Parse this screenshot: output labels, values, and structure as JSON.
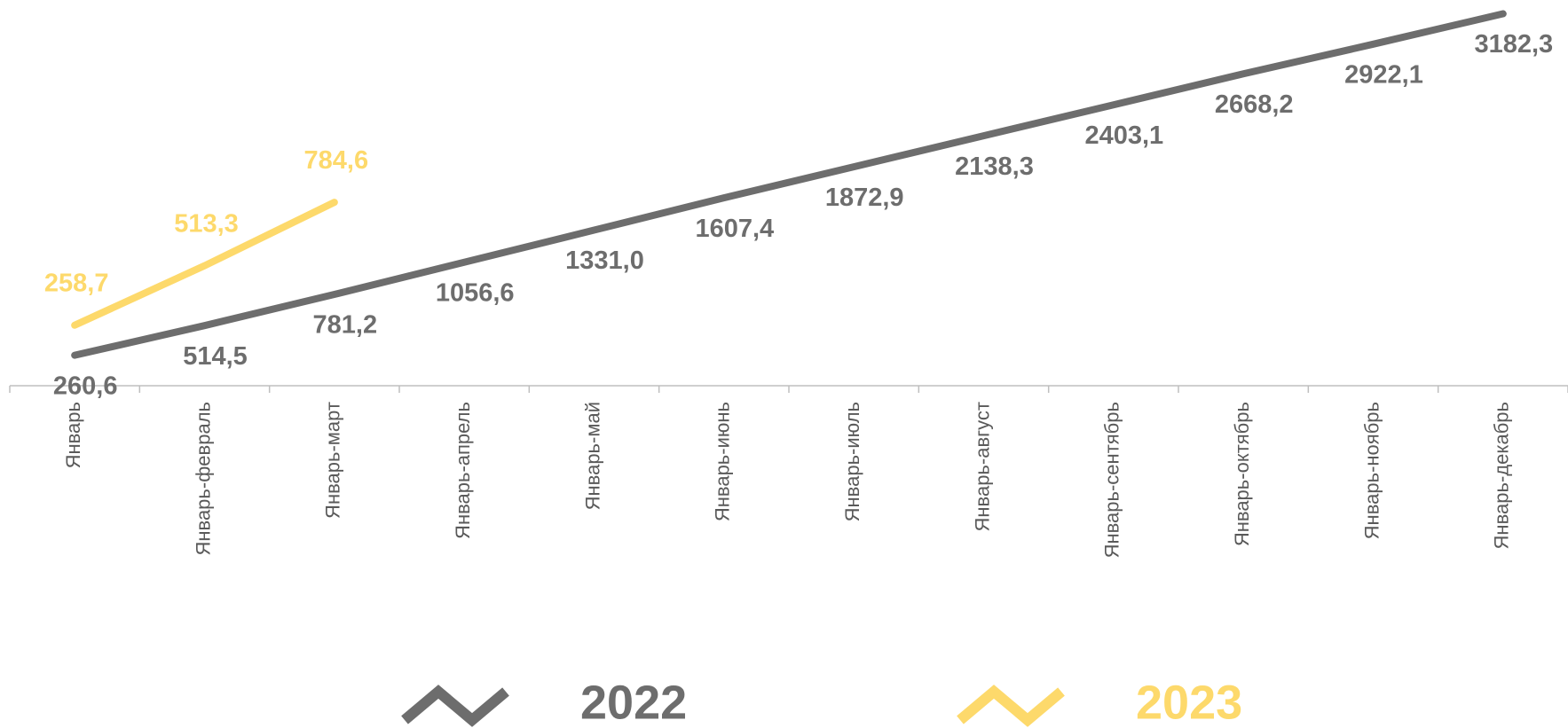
{
  "chart_data": {
    "type": "line",
    "categories": [
      "Январь",
      "Январь-февраль",
      "Январь-март",
      "Январь-апрель",
      "Январь-май",
      "Январь-июнь",
      "Январь-июль",
      "Январь-август",
      "Январь-сентябрь",
      "Январь-октябрь",
      "Январь-ноябрь",
      "Январь-декабрь"
    ],
    "ylim": [
      0,
      3300
    ],
    "y2lim": [
      0,
      1650
    ],
    "legend": "bottom",
    "series": [
      {
        "name": "2022",
        "color": "#6d6d6d",
        "values": [
          260.6,
          514.5,
          781.2,
          1056.6,
          1331.0,
          1607.4,
          1872.9,
          2138.3,
          2403.1,
          2668.2,
          2922.1,
          3182.3
        ],
        "value_labels": [
          "260,6",
          "514,5",
          "781,2",
          "1056,6",
          "1331,0",
          "1607,4",
          "1872,9",
          "2138,3",
          "2403,1",
          "2668,2",
          "2922,1",
          "3182,3"
        ]
      },
      {
        "name": "2023",
        "color": "#fdd96b",
        "axis": "y2",
        "values": [
          258.7,
          513.3,
          784.6,
          null,
          null,
          null,
          null,
          null,
          null,
          null,
          null,
          null
        ],
        "value_labels": [
          "258,7",
          "513,3",
          "784,6",
          null,
          null,
          null,
          null,
          null,
          null,
          null,
          null,
          null
        ]
      }
    ]
  }
}
